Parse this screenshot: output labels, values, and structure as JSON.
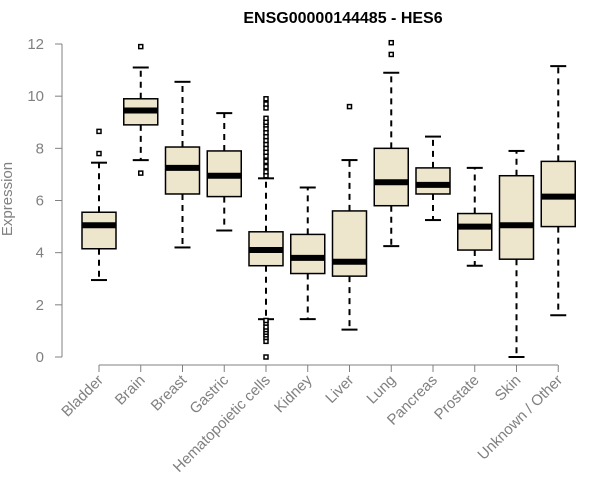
{
  "chart_data": {
    "type": "boxplot",
    "title": "ENSG00000144485 - HES6",
    "xlabel": "",
    "ylabel": "Expression",
    "ylim": [
      0,
      12
    ],
    "yticks": [
      0,
      2,
      4,
      6,
      8,
      10,
      12
    ],
    "categories": [
      "Bladder",
      "Brain",
      "Breast",
      "Gastric",
      "Hematopoietic cells",
      "Kidney",
      "Liver",
      "Lung",
      "Pancreas",
      "Prostate",
      "Skin",
      "Unknown / Other"
    ],
    "boxes": [
      {
        "min": 2.95,
        "q1": 4.15,
        "median": 5.05,
        "q3": 5.55,
        "max": 7.45,
        "outliers": [
          7.8,
          8.65
        ]
      },
      {
        "min": 7.55,
        "q1": 8.9,
        "median": 9.45,
        "q3": 9.9,
        "max": 11.1,
        "outliers": [
          7.05,
          11.9
        ]
      },
      {
        "min": 4.2,
        "q1": 6.25,
        "median": 7.25,
        "q3": 8.05,
        "max": 10.55,
        "outliers": []
      },
      {
        "min": 4.85,
        "q1": 6.15,
        "median": 6.95,
        "q3": 7.9,
        "max": 9.35,
        "outliers": []
      },
      {
        "min": 1.45,
        "q1": 3.5,
        "median": 4.1,
        "q3": 4.8,
        "max": 6.85,
        "outliers": [
          0.0,
          0.6,
          0.75,
          0.85,
          0.95,
          1.05,
          1.15,
          1.3,
          1.4,
          6.95,
          7.1,
          7.3,
          7.5,
          7.7,
          7.85,
          8.0,
          8.15,
          8.3,
          8.45,
          8.6,
          8.75,
          8.9,
          9.0,
          9.15,
          9.55,
          9.7,
          9.9
        ]
      },
      {
        "min": 1.45,
        "q1": 3.2,
        "median": 3.8,
        "q3": 4.7,
        "max": 6.5,
        "outliers": []
      },
      {
        "min": 1.05,
        "q1": 3.1,
        "median": 3.65,
        "q3": 5.6,
        "max": 7.55,
        "outliers": [
          9.6
        ]
      },
      {
        "min": 4.25,
        "q1": 5.8,
        "median": 6.7,
        "q3": 8.0,
        "max": 10.9,
        "outliers": [
          11.6,
          12.05
        ]
      },
      {
        "min": 5.25,
        "q1": 6.25,
        "median": 6.6,
        "q3": 7.25,
        "max": 8.45,
        "outliers": []
      },
      {
        "min": 3.5,
        "q1": 4.1,
        "median": 5.0,
        "q3": 5.5,
        "max": 7.25,
        "outliers": []
      },
      {
        "min": 0.0,
        "q1": 3.75,
        "median": 5.05,
        "q3": 6.95,
        "max": 7.9,
        "outliers": []
      },
      {
        "min": 1.6,
        "q1": 5.0,
        "median": 6.15,
        "q3": 7.5,
        "max": 11.15,
        "outliers": []
      }
    ],
    "box_fill": "#ede6cc",
    "box_stroke": "#000000",
    "axis_color": "#808080",
    "grid": false
  }
}
